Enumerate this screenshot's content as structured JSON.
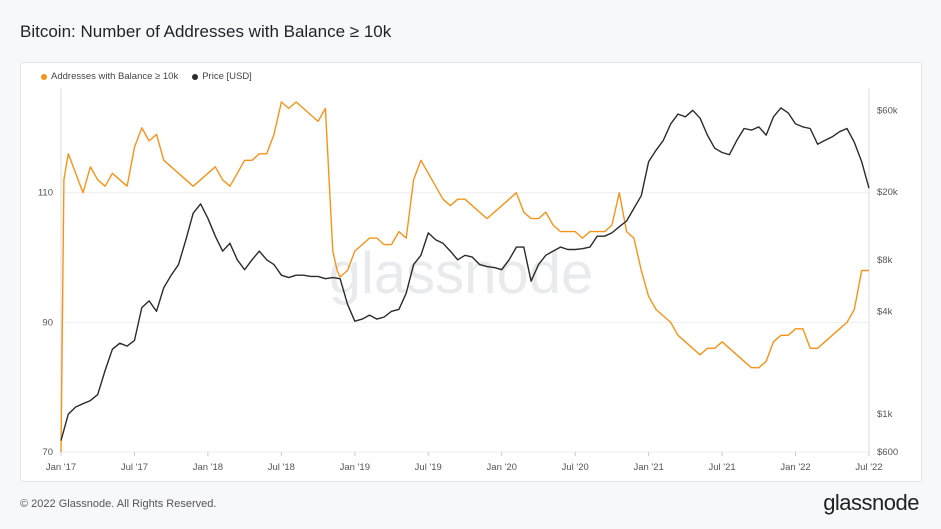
{
  "title": "Bitcoin: Number of Addresses with Balance ≥ 10k",
  "footer": {
    "copyright": "© 2022 Glassnode. All Rights Reserved.",
    "brand": "glassnode"
  },
  "watermark": "glassnode",
  "colors": {
    "addresses": "#f7931a",
    "price": "#2b2b2b",
    "grid": "#eceef1"
  },
  "chart_data": {
    "type": "line",
    "legend": [
      {
        "label": "Addresses with Balance ≥ 10k",
        "color": "#f7931a"
      },
      {
        "label": "Price [USD]",
        "color": "#2b2b2b"
      }
    ],
    "x_ticks": [
      "Jan '17",
      "Jul '17",
      "Jan '18",
      "Jul '18",
      "Jan '19",
      "Jul '19",
      "Jan '20",
      "Jul '20",
      "Jan '21",
      "Jul '21",
      "Jan '22",
      "Jul '22"
    ],
    "x_range": [
      2017.0,
      2022.5
    ],
    "left_axis": {
      "ticks": [
        "70",
        "90",
        "110"
      ],
      "tick_values": [
        70,
        90,
        110
      ],
      "range": [
        70,
        126
      ]
    },
    "right_axis": {
      "scale": "log",
      "ticks": [
        "$600",
        "$1k",
        "$4k",
        "$8k",
        "$20k",
        "$60k"
      ],
      "tick_values": [
        600,
        1000,
        4000,
        8000,
        20000,
        60000
      ],
      "range": [
        600,
        80000
      ]
    },
    "series": [
      {
        "name": "Addresses with Balance ≥ 10k",
        "axis": "left",
        "color": "#f7931a",
        "x": [
          2017.0,
          2017.02,
          2017.05,
          2017.1,
          2017.15,
          2017.2,
          2017.25,
          2017.3,
          2017.35,
          2017.4,
          2017.45,
          2017.5,
          2017.55,
          2017.6,
          2017.65,
          2017.7,
          2017.75,
          2017.8,
          2017.85,
          2017.9,
          2017.95,
          2018.0,
          2018.05,
          2018.1,
          2018.15,
          2018.2,
          2018.25,
          2018.3,
          2018.35,
          2018.4,
          2018.45,
          2018.5,
          2018.55,
          2018.6,
          2018.65,
          2018.7,
          2018.75,
          2018.8,
          2018.85,
          2018.88,
          2018.9,
          2018.95,
          2019.0,
          2019.05,
          2019.1,
          2019.15,
          2019.2,
          2019.25,
          2019.3,
          2019.35,
          2019.4,
          2019.45,
          2019.5,
          2019.55,
          2019.6,
          2019.65,
          2019.7,
          2019.75,
          2019.8,
          2019.85,
          2019.9,
          2019.95,
          2020.0,
          2020.05,
          2020.1,
          2020.15,
          2020.2,
          2020.25,
          2020.3,
          2020.35,
          2020.4,
          2020.45,
          2020.5,
          2020.55,
          2020.6,
          2020.65,
          2020.7,
          2020.75,
          2020.8,
          2020.85,
          2020.9,
          2020.95,
          2021.0,
          2021.05,
          2021.1,
          2021.15,
          2021.2,
          2021.25,
          2021.3,
          2021.35,
          2021.4,
          2021.45,
          2021.5,
          2021.55,
          2021.6,
          2021.65,
          2021.7,
          2021.75,
          2021.8,
          2021.85,
          2021.9,
          2021.95,
          2022.0,
          2022.05,
          2022.1,
          2022.15,
          2022.2,
          2022.25,
          2022.3,
          2022.35,
          2022.4,
          2022.45,
          2022.5
        ],
        "values": [
          70,
          112,
          116,
          113,
          110,
          114,
          112,
          111,
          113,
          112,
          111,
          117,
          120,
          118,
          119,
          115,
          114,
          113,
          112,
          111,
          112,
          113,
          114,
          112,
          111,
          113,
          115,
          115,
          116,
          116,
          119,
          124,
          123,
          124,
          123,
          122,
          121,
          123,
          101,
          98,
          97,
          98,
          101,
          102,
          103,
          103,
          102,
          102,
          104,
          103,
          112,
          115,
          113,
          111,
          109,
          108,
          109,
          109,
          108,
          107,
          106,
          107,
          108,
          109,
          110,
          107,
          106,
          106,
          107,
          105,
          104,
          104,
          104,
          103,
          104,
          104,
          104,
          105,
          110,
          104,
          103,
          98,
          94,
          92,
          91,
          90,
          88,
          87,
          86,
          85,
          86,
          86,
          87,
          86,
          85,
          84,
          83,
          83,
          84,
          87,
          88,
          88,
          89,
          89,
          86,
          86,
          87,
          88,
          89,
          90,
          92,
          98,
          98
        ]
      },
      {
        "name": "Price [USD]",
        "axis": "right",
        "color": "#2b2b2b",
        "x": [
          2017.0,
          2017.05,
          2017.1,
          2017.15,
          2017.2,
          2017.25,
          2017.3,
          2017.35,
          2017.4,
          2017.45,
          2017.5,
          2017.55,
          2017.6,
          2017.65,
          2017.7,
          2017.75,
          2017.8,
          2017.85,
          2017.9,
          2017.95,
          2018.0,
          2018.05,
          2018.1,
          2018.15,
          2018.2,
          2018.25,
          2018.3,
          2018.35,
          2018.4,
          2018.45,
          2018.5,
          2018.55,
          2018.6,
          2018.65,
          2018.7,
          2018.75,
          2018.8,
          2018.85,
          2018.9,
          2018.95,
          2019.0,
          2019.05,
          2019.1,
          2019.15,
          2019.2,
          2019.25,
          2019.3,
          2019.35,
          2019.4,
          2019.45,
          2019.5,
          2019.55,
          2019.6,
          2019.65,
          2019.7,
          2019.75,
          2019.8,
          2019.85,
          2019.9,
          2019.95,
          2020.0,
          2020.05,
          2020.1,
          2020.15,
          2020.2,
          2020.25,
          2020.3,
          2020.35,
          2020.4,
          2020.45,
          2020.5,
          2020.55,
          2020.6,
          2020.65,
          2020.7,
          2020.75,
          2020.8,
          2020.85,
          2020.9,
          2020.95,
          2021.0,
          2021.05,
          2021.1,
          2021.15,
          2021.2,
          2021.25,
          2021.3,
          2021.35,
          2021.4,
          2021.45,
          2021.5,
          2021.55,
          2021.6,
          2021.65,
          2021.7,
          2021.75,
          2021.8,
          2021.85,
          2021.9,
          2021.95,
          2022.0,
          2022.05,
          2022.1,
          2022.15,
          2022.2,
          2022.25,
          2022.3,
          2022.35,
          2022.4,
          2022.45,
          2022.5
        ],
        "values": [
          700,
          1000,
          1100,
          1150,
          1200,
          1300,
          1800,
          2400,
          2600,
          2500,
          2700,
          4200,
          4600,
          4000,
          5500,
          6500,
          7500,
          10500,
          15000,
          17000,
          14000,
          11000,
          9000,
          10000,
          8000,
          7000,
          8000,
          9000,
          8000,
          7500,
          6500,
          6300,
          6500,
          6500,
          6400,
          6400,
          6200,
          6300,
          6200,
          4400,
          3500,
          3600,
          3800,
          3600,
          3700,
          4000,
          4100,
          5100,
          7500,
          8500,
          11500,
          10500,
          10000,
          9000,
          8000,
          8500,
          8300,
          7500,
          7300,
          7200,
          7000,
          8000,
          9500,
          9500,
          6000,
          7500,
          8500,
          9000,
          9500,
          9200,
          9200,
          9300,
          9500,
          11000,
          11000,
          11500,
          12500,
          13500,
          16000,
          19000,
          30000,
          35000,
          40000,
          50000,
          57000,
          55000,
          60000,
          54000,
          43000,
          36000,
          34000,
          33000,
          40000,
          47000,
          46000,
          48000,
          43000,
          55000,
          62000,
          58000,
          50000,
          48000,
          47000,
          38000,
          40000,
          42000,
          45000,
          47000,
          39000,
          30000,
          21000
        ]
      }
    ]
  }
}
